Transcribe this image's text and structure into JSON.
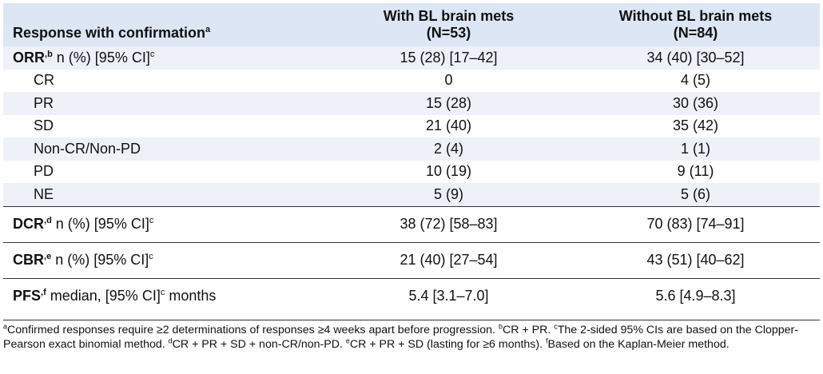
{
  "header": {
    "label": "Response with confirmation",
    "label_sup": "a",
    "col1_line1": "With BL brain mets",
    "col1_line2": "(N=53)",
    "col2_line1": "Without BL brain mets",
    "col2_line2": "(N=84)"
  },
  "orr": {
    "label": "ORR",
    "label_sup": "b",
    "rest": " n (%) [95% CI]",
    "rest_sup": "c",
    "with": "15 (28) [17–42]",
    "without": "34 (40) [30–52]",
    "rows": [
      {
        "label": "CR",
        "with": "0",
        "without": "4 (5)"
      },
      {
        "label": "PR",
        "with": "15 (28)",
        "without": "30 (36)"
      },
      {
        "label": "SD",
        "with": "21 (40)",
        "without": "35 (42)"
      },
      {
        "label": "Non-CR/Non-PD",
        "with": "2 (4)",
        "without": "1 (1)"
      },
      {
        "label": "PD",
        "with": "10 (19)",
        "without": "9 (11)"
      },
      {
        "label": "NE",
        "with": "5 (9)",
        "without": "5 (6)"
      }
    ]
  },
  "dcr": {
    "label": "DCR",
    "label_sup": "d",
    "rest": " n (%) [95% CI]",
    "rest_sup": "c",
    "with": "38 (72) [58–83]",
    "without": "70 (83) [74–91]"
  },
  "cbr": {
    "label": "CBR",
    "label_sup": "e",
    "rest": " n (%) [95% CI]",
    "rest_sup": "c",
    "with": "21 (40) [27–54]",
    "without": "43 (51) [40–62]"
  },
  "pfs": {
    "label": "PFS",
    "label_sup": "f",
    "rest": " median, [95% CI]",
    "rest_sup": "c",
    "rest_tail": " months",
    "with": "5.4 [3.1–7.0]",
    "without": "5.6 [4.9–8.3]"
  },
  "footnote": {
    "a_sup": "a",
    "a": "Confirmed responses require ≥2 determinations of responses ≥4 weeks apart before progression. ",
    "b_sup": "b",
    "b": "CR + PR. ",
    "c_sup": "c",
    "c": "The 2-sided 95% CIs are based on the Clopper-Pearson exact binomial method. ",
    "d_sup": "d",
    "d": "CR + PR + SD + non-CR/non-PD. ",
    "e_sup": "e",
    "e": "CR + PR + SD (lasting for ≥6 months). ",
    "f_sup": "f",
    "f": "Based on the Kaplan-Meier method."
  }
}
